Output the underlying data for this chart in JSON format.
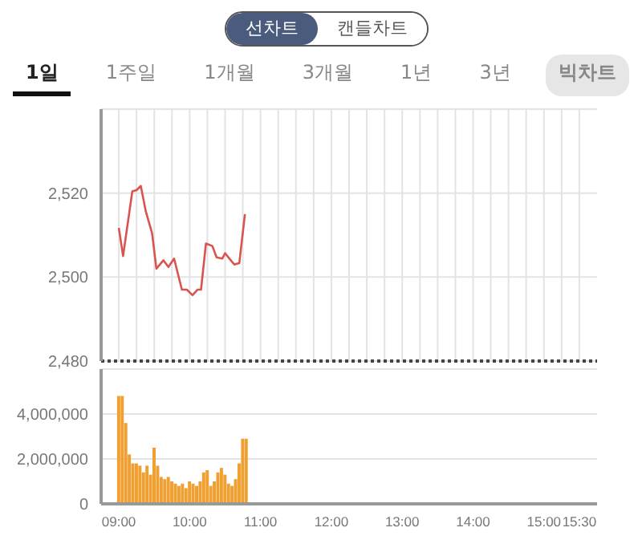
{
  "chart_data": [
    {
      "type": "line",
      "annotations": [
        "선차트",
        "캔들차트",
        "1일",
        "1주일",
        "1개월",
        "3개월",
        "1년",
        "3년",
        "빅차트"
      ],
      "x": [
        9.0,
        9.06,
        9.19,
        9.25,
        9.31,
        9.38,
        9.47,
        9.53,
        9.63,
        9.7,
        9.78,
        9.89,
        9.96,
        10.04,
        10.11,
        10.16,
        10.23,
        10.32,
        10.38,
        10.46,
        10.5,
        10.57,
        10.63,
        10.7,
        10.78
      ],
      "series": [
        {
          "color": "#d9534f",
          "values": [
            2511.7,
            2505,
            2520.4,
            2520.7,
            2521.7,
            2515.7,
            2510.4,
            2502,
            2504,
            2502.4,
            2504.4,
            2497,
            2497,
            2495.7,
            2497,
            2497,
            2508,
            2507.4,
            2504.7,
            2504.4,
            2505.7,
            2504.2,
            2503,
            2503.3,
            2515
          ]
        }
      ],
      "xlim": [
        8.75,
        15.75
      ],
      "xticks": [
        {
          "value": 9,
          "label": null
        },
        {
          "value": 9.25,
          "label": null
        },
        {
          "value": 9.5,
          "label": null
        },
        {
          "value": 9.75,
          "label": null
        },
        {
          "value": 10,
          "label": null
        },
        {
          "value": 10.25,
          "label": null
        },
        {
          "value": 10.5,
          "label": null
        },
        {
          "value": 10.75,
          "label": null
        },
        {
          "value": 11,
          "label": null
        },
        {
          "value": 11.25,
          "label": null
        },
        {
          "value": 11.5,
          "label": null
        },
        {
          "value": 11.75,
          "label": null
        },
        {
          "value": 12,
          "label": null
        },
        {
          "value": 12.25,
          "label": null
        },
        {
          "value": 12.5,
          "label": null
        },
        {
          "value": 12.75,
          "label": null
        },
        {
          "value": 13,
          "label": null
        },
        {
          "value": 13.25,
          "label": null
        },
        {
          "value": 13.5,
          "label": null
        },
        {
          "value": 13.75,
          "label": null
        },
        {
          "value": 14,
          "label": null
        },
        {
          "value": 14.25,
          "label": null
        },
        {
          "value": 14.5,
          "label": null
        },
        {
          "value": 14.75,
          "label": null
        },
        {
          "value": 15,
          "label": null
        },
        {
          "value": 15.25,
          "label": null
        },
        {
          "value": 15.5,
          "label": null
        }
      ],
      "ylim": [
        2480,
        2540
      ],
      "yticks": [
        {
          "value": 2480,
          "label": "2,480"
        },
        {
          "value": 2500,
          "label": "2,500"
        },
        {
          "value": 2520,
          "label": "2,520"
        }
      ],
      "ref_lines": [
        {
          "axis": "y",
          "value": 2480,
          "line_style": "dotted",
          "color": "#444444"
        }
      ],
      "grid": true,
      "tick_labels": "y",
      "marker": "none",
      "line_style": "solid",
      "legend": false
    },
    {
      "type": "bar",
      "x": [
        9.0,
        9.05,
        9.1,
        9.15,
        9.2,
        9.25,
        9.3,
        9.35,
        9.4,
        9.45,
        9.5,
        9.55,
        9.6,
        9.65,
        9.7,
        9.75,
        9.8,
        9.85,
        9.9,
        9.95,
        10.0,
        10.05,
        10.1,
        10.15,
        10.2,
        10.25,
        10.3,
        10.35,
        10.4,
        10.45,
        10.5,
        10.55,
        10.6,
        10.65,
        10.7,
        10.75,
        10.8
      ],
      "series": [
        {
          "color": "#f0a030",
          "values": [
            4800000,
            4800000,
            3600000,
            2200000,
            1800000,
            1800000,
            1700000,
            1400000,
            1700000,
            1300000,
            2500000,
            1700000,
            1200000,
            1100000,
            1200000,
            1000000,
            900000,
            800000,
            900000,
            700000,
            1000000,
            900000,
            800000,
            1000000,
            1400000,
            1500000,
            800000,
            1000000,
            1400000,
            1600000,
            1300000,
            900000,
            800000,
            1100000,
            1800000,
            2900000,
            2900000
          ]
        }
      ],
      "xlim": [
        8.75,
        15.75
      ],
      "xticks": [
        {
          "value": 9,
          "label": "09:00"
        },
        {
          "value": 10,
          "label": "10:00"
        },
        {
          "value": 11,
          "label": "11:00"
        },
        {
          "value": 12,
          "label": "12:00"
        },
        {
          "value": 13,
          "label": "13:00"
        },
        {
          "value": 14,
          "label": "14:00"
        },
        {
          "value": 15,
          "label": "15:00"
        },
        {
          "value": 15.5,
          "label": "15:30"
        }
      ],
      "ylim": [
        0,
        6000000
      ],
      "yticks": [
        {
          "value": 0,
          "label": "0"
        },
        {
          "value": 2000000,
          "label": "2,000,000"
        },
        {
          "value": 4000000,
          "label": "4,000,000"
        }
      ],
      "grid": "y",
      "legend": false
    }
  ]
}
